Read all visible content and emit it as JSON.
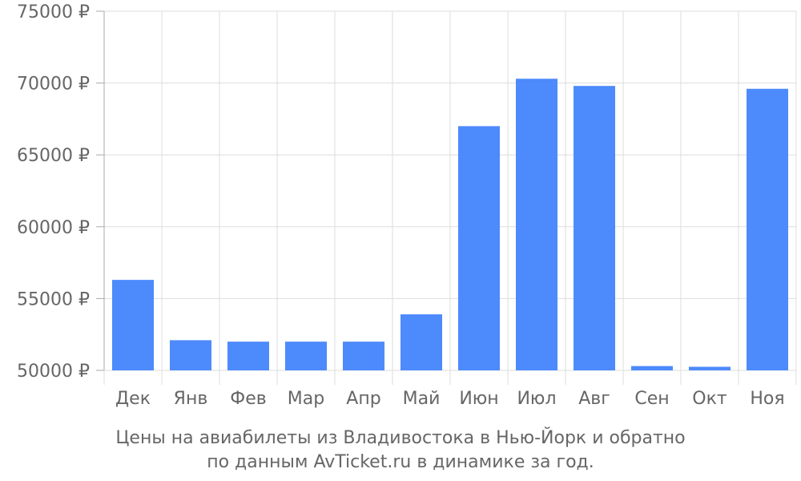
{
  "caption": {
    "line1": "Цены на авиабилеты из Владивостока в Нью-Йорк и обратно",
    "line2": "по данным AvTicket.ru в динамике за год."
  },
  "colors": {
    "bar": "#4d8afb",
    "grid": "#dddddd",
    "axis": "#aaaaaa",
    "text": "#666666"
  },
  "chart_data": {
    "type": "bar",
    "categories": [
      "Дек",
      "Янв",
      "Фев",
      "Мар",
      "Апр",
      "Май",
      "Июн",
      "Июл",
      "Авг",
      "Сен",
      "Окт",
      "Ноя"
    ],
    "values": [
      56300,
      52100,
      52000,
      52000,
      52000,
      53900,
      67000,
      70300,
      69800,
      50300,
      50250,
      69600
    ],
    "ylim": [
      50000,
      75000
    ],
    "yticks": [
      50000,
      55000,
      60000,
      65000,
      70000,
      75000
    ],
    "ytick_labels": [
      "50000 ₽",
      "55000 ₽",
      "60000 ₽",
      "65000 ₽",
      "70000 ₽",
      "75000 ₽"
    ],
    "grid": true,
    "xlabel": "",
    "ylabel": ""
  }
}
